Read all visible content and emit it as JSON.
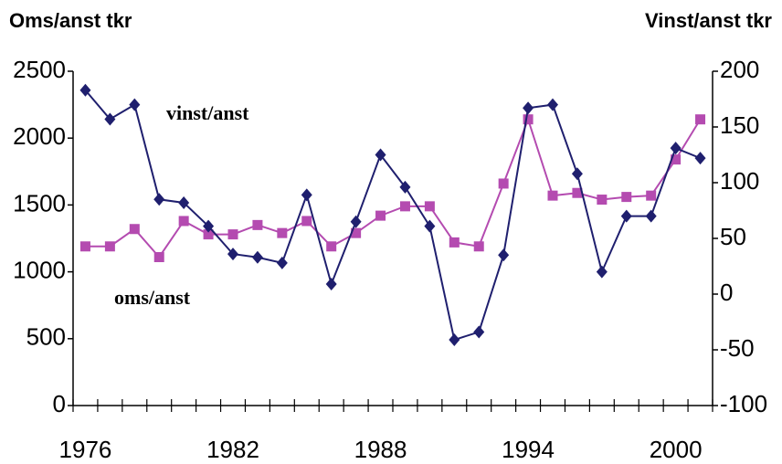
{
  "chart_data": {
    "type": "line",
    "y_label": "Oms/anst tkr",
    "y2_label": "Vinst/anst tkr",
    "annotations": [
      "vinst/anst",
      "oms/anst"
    ],
    "categories": [
      "1976",
      null,
      null,
      null,
      null,
      null,
      "1982",
      null,
      null,
      null,
      null,
      null,
      "1988",
      null,
      null,
      null,
      null,
      null,
      "1994",
      null,
      null,
      null,
      null,
      null,
      "2000",
      null
    ],
    "series": [
      {
        "name": "oms/anst",
        "color": "#b44bb0",
        "marker": "square",
        "axis": "y",
        "values": [
          1190,
          1190,
          1320,
          1110,
          1380,
          1280,
          1280,
          1350,
          1290,
          1380,
          1190,
          1290,
          1420,
          1490,
          1490,
          1220,
          1190,
          1660,
          2140,
          1570,
          1590,
          1540,
          1560,
          1570,
          1840,
          2140
        ]
      },
      {
        "name": "vinst/anst",
        "color": "#1f1f6e",
        "marker": "diamond",
        "axis": "y2",
        "values": [
          183,
          157,
          170,
          85,
          82,
          61,
          36,
          33,
          28,
          89,
          9,
          65,
          125,
          96,
          61,
          -41,
          -34,
          35,
          167,
          170,
          108,
          20,
          70,
          70,
          131,
          122
        ]
      }
    ],
    "ylim": [
      0,
      2500
    ],
    "yticks": [
      0,
      500,
      1000,
      1500,
      2000,
      2500
    ],
    "y2lim": [
      -100,
      200
    ],
    "y2ticks": [
      -100,
      -50,
      0,
      50,
      100,
      150,
      200
    ],
    "grid": false
  }
}
